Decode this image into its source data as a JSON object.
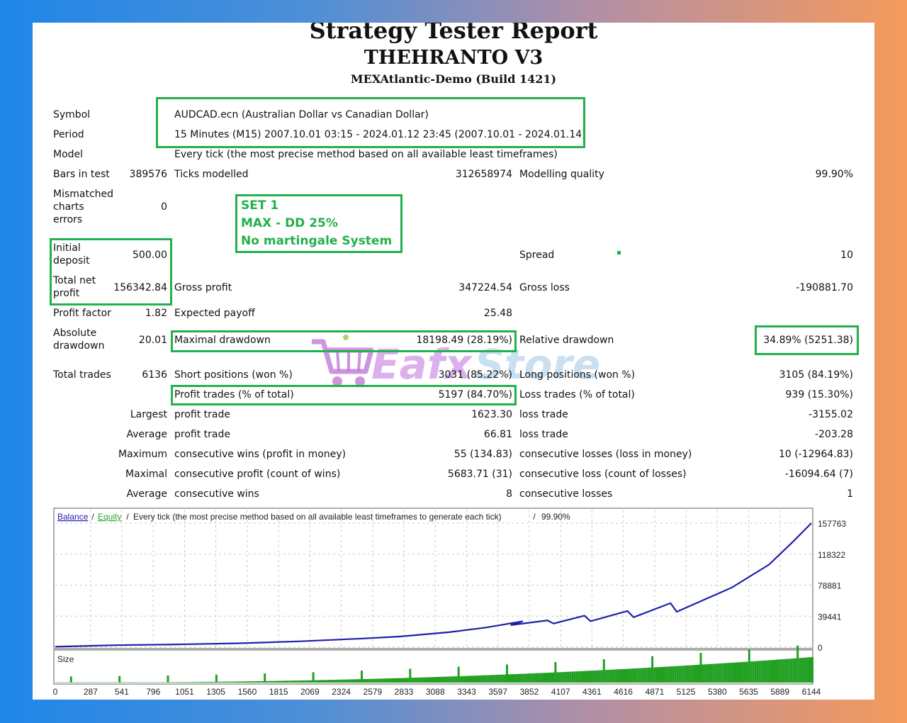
{
  "header": {
    "title": "Strategy Tester Report",
    "subtitle": "THEHRANTO V3",
    "server": "MEXAtlantic-Demo (Build 1421)"
  },
  "rows": {
    "symbol": {
      "label": "Symbol",
      "value": "AUDCAD.ecn (Australian Dollar vs Canadian Dollar)"
    },
    "period": {
      "label": "Period",
      "value": "15 Minutes (M15) 2007.10.01 03:15 - 2024.01.12 23:45 (2007.10.01 - 2024.01.14)"
    },
    "model": {
      "label": "Model",
      "value": "Every tick (the most precise method based on all available least timeframes)"
    },
    "bars": {
      "label": "Bars in test",
      "value": "389576",
      "ticks_label": "Ticks modelled",
      "ticks_value": "312658974",
      "quality_label": "Modelling quality",
      "quality_value": "99.90%"
    },
    "mismatch": {
      "line1": "Mismatched",
      "line2": "charts",
      "line3": "errors",
      "value": "0"
    },
    "deposit": {
      "line1": "Initial",
      "line2": "deposit",
      "value": "500.00",
      "spread_label": "Spread",
      "spread_value": "10"
    },
    "net": {
      "line1": "Total net",
      "line2": "profit",
      "value": "156342.84",
      "gp_label": "Gross profit",
      "gp_value": "347224.54",
      "gl_label": "Gross loss",
      "gl_value": "-190881.70"
    },
    "pf": {
      "label": "Profit factor",
      "value": "1.82",
      "ep_label": "Expected payoff",
      "ep_value": "25.48"
    },
    "dd": {
      "line1": "Absolute",
      "line2": "drawdown",
      "value": "20.01",
      "md_label": "Maximal drawdown",
      "md_value": "18198.49 (28.19%)",
      "rd_label": "Relative drawdown",
      "rd_value": "34.89% (5251.38)"
    },
    "trades": {
      "label": "Total trades",
      "value": "6136",
      "short_label": "Short positions (won %)",
      "short_value": "3031 (85.22%)",
      "long_label": "Long positions (won %)",
      "long_value": "3105 (84.19%)"
    },
    "pt": {
      "pt_label": "Profit trades (% of total)",
      "pt_value": "5197 (84.70%)",
      "lt_label": "Loss trades (% of total)",
      "lt_value": "939 (15.30%)"
    },
    "largest": {
      "label": "Largest",
      "p_label": "profit trade",
      "p_value": "1623.30",
      "l_label": "loss trade",
      "l_value": "-3155.02"
    },
    "average": {
      "label": "Average",
      "p_label": "profit trade",
      "p_value": "66.81",
      "l_label": "loss trade",
      "l_value": "-203.28"
    },
    "maximum": {
      "label": "Maximum",
      "p_label": "consecutive wins (profit in money)",
      "p_value": "55 (134.83)",
      "l_label": "consecutive losses (loss in money)",
      "l_value": "10 (-12964.83)"
    },
    "maximal": {
      "label": "Maximal",
      "p_label": "consecutive profit (count of wins)",
      "p_value": "5683.71 (31)",
      "l_label": "consecutive loss (count of losses)",
      "l_value": "-16094.64 (7)"
    },
    "average2": {
      "label": "Average",
      "p_label": "consecutive wins",
      "p_value": "8",
      "l_label": "consecutive losses",
      "l_value": "1"
    }
  },
  "annotation": {
    "line1": "SET 1",
    "line2": "MAX - DD 25%",
    "line3": "No martingale System"
  },
  "watermark": {
    "text1": "Eafx",
    "text2": "Store"
  },
  "chart_data": {
    "type": "line",
    "legend": {
      "balance": "Balance",
      "equity": "Equity",
      "sep": " / ",
      "description": "Every tick (the most precise method based on all available least timeframes to generate each tick)",
      "quality": "99.90%"
    },
    "size_label": "Size",
    "y_ticks": [
      "157763",
      "118322",
      "78881",
      "39441",
      "0"
    ],
    "x_ticks": [
      "0",
      "287",
      "541",
      "796",
      "1051",
      "1305",
      "1560",
      "1815",
      "2069",
      "2324",
      "2579",
      "2833",
      "3088",
      "3343",
      "3597",
      "3852",
      "4107",
      "4361",
      "4616",
      "4871",
      "5125",
      "5380",
      "5635",
      "5889",
      "6144"
    ],
    "ylim": [
      0,
      157763
    ],
    "xlim": [
      0,
      6144
    ],
    "balance_x": [
      0,
      500,
      1000,
      1500,
      2000,
      2500,
      2800,
      3200,
      3500,
      3800,
      3700,
      4000,
      4050,
      4300,
      4350,
      4650,
      4700,
      5000,
      5050,
      5500,
      5800,
      6000,
      6144
    ],
    "balance_y": [
      500,
      2500,
      3500,
      5000,
      7500,
      11000,
      13500,
      19000,
      25000,
      33000,
      28000,
      34000,
      30000,
      40000,
      33000,
      46000,
      38000,
      56000,
      45000,
      76000,
      105000,
      135000,
      157763
    ],
    "colors": {
      "balance": "#1f1fa8",
      "equity": "#2aa12a",
      "size": "#22a022",
      "grid": "#c8c8c8"
    }
  }
}
